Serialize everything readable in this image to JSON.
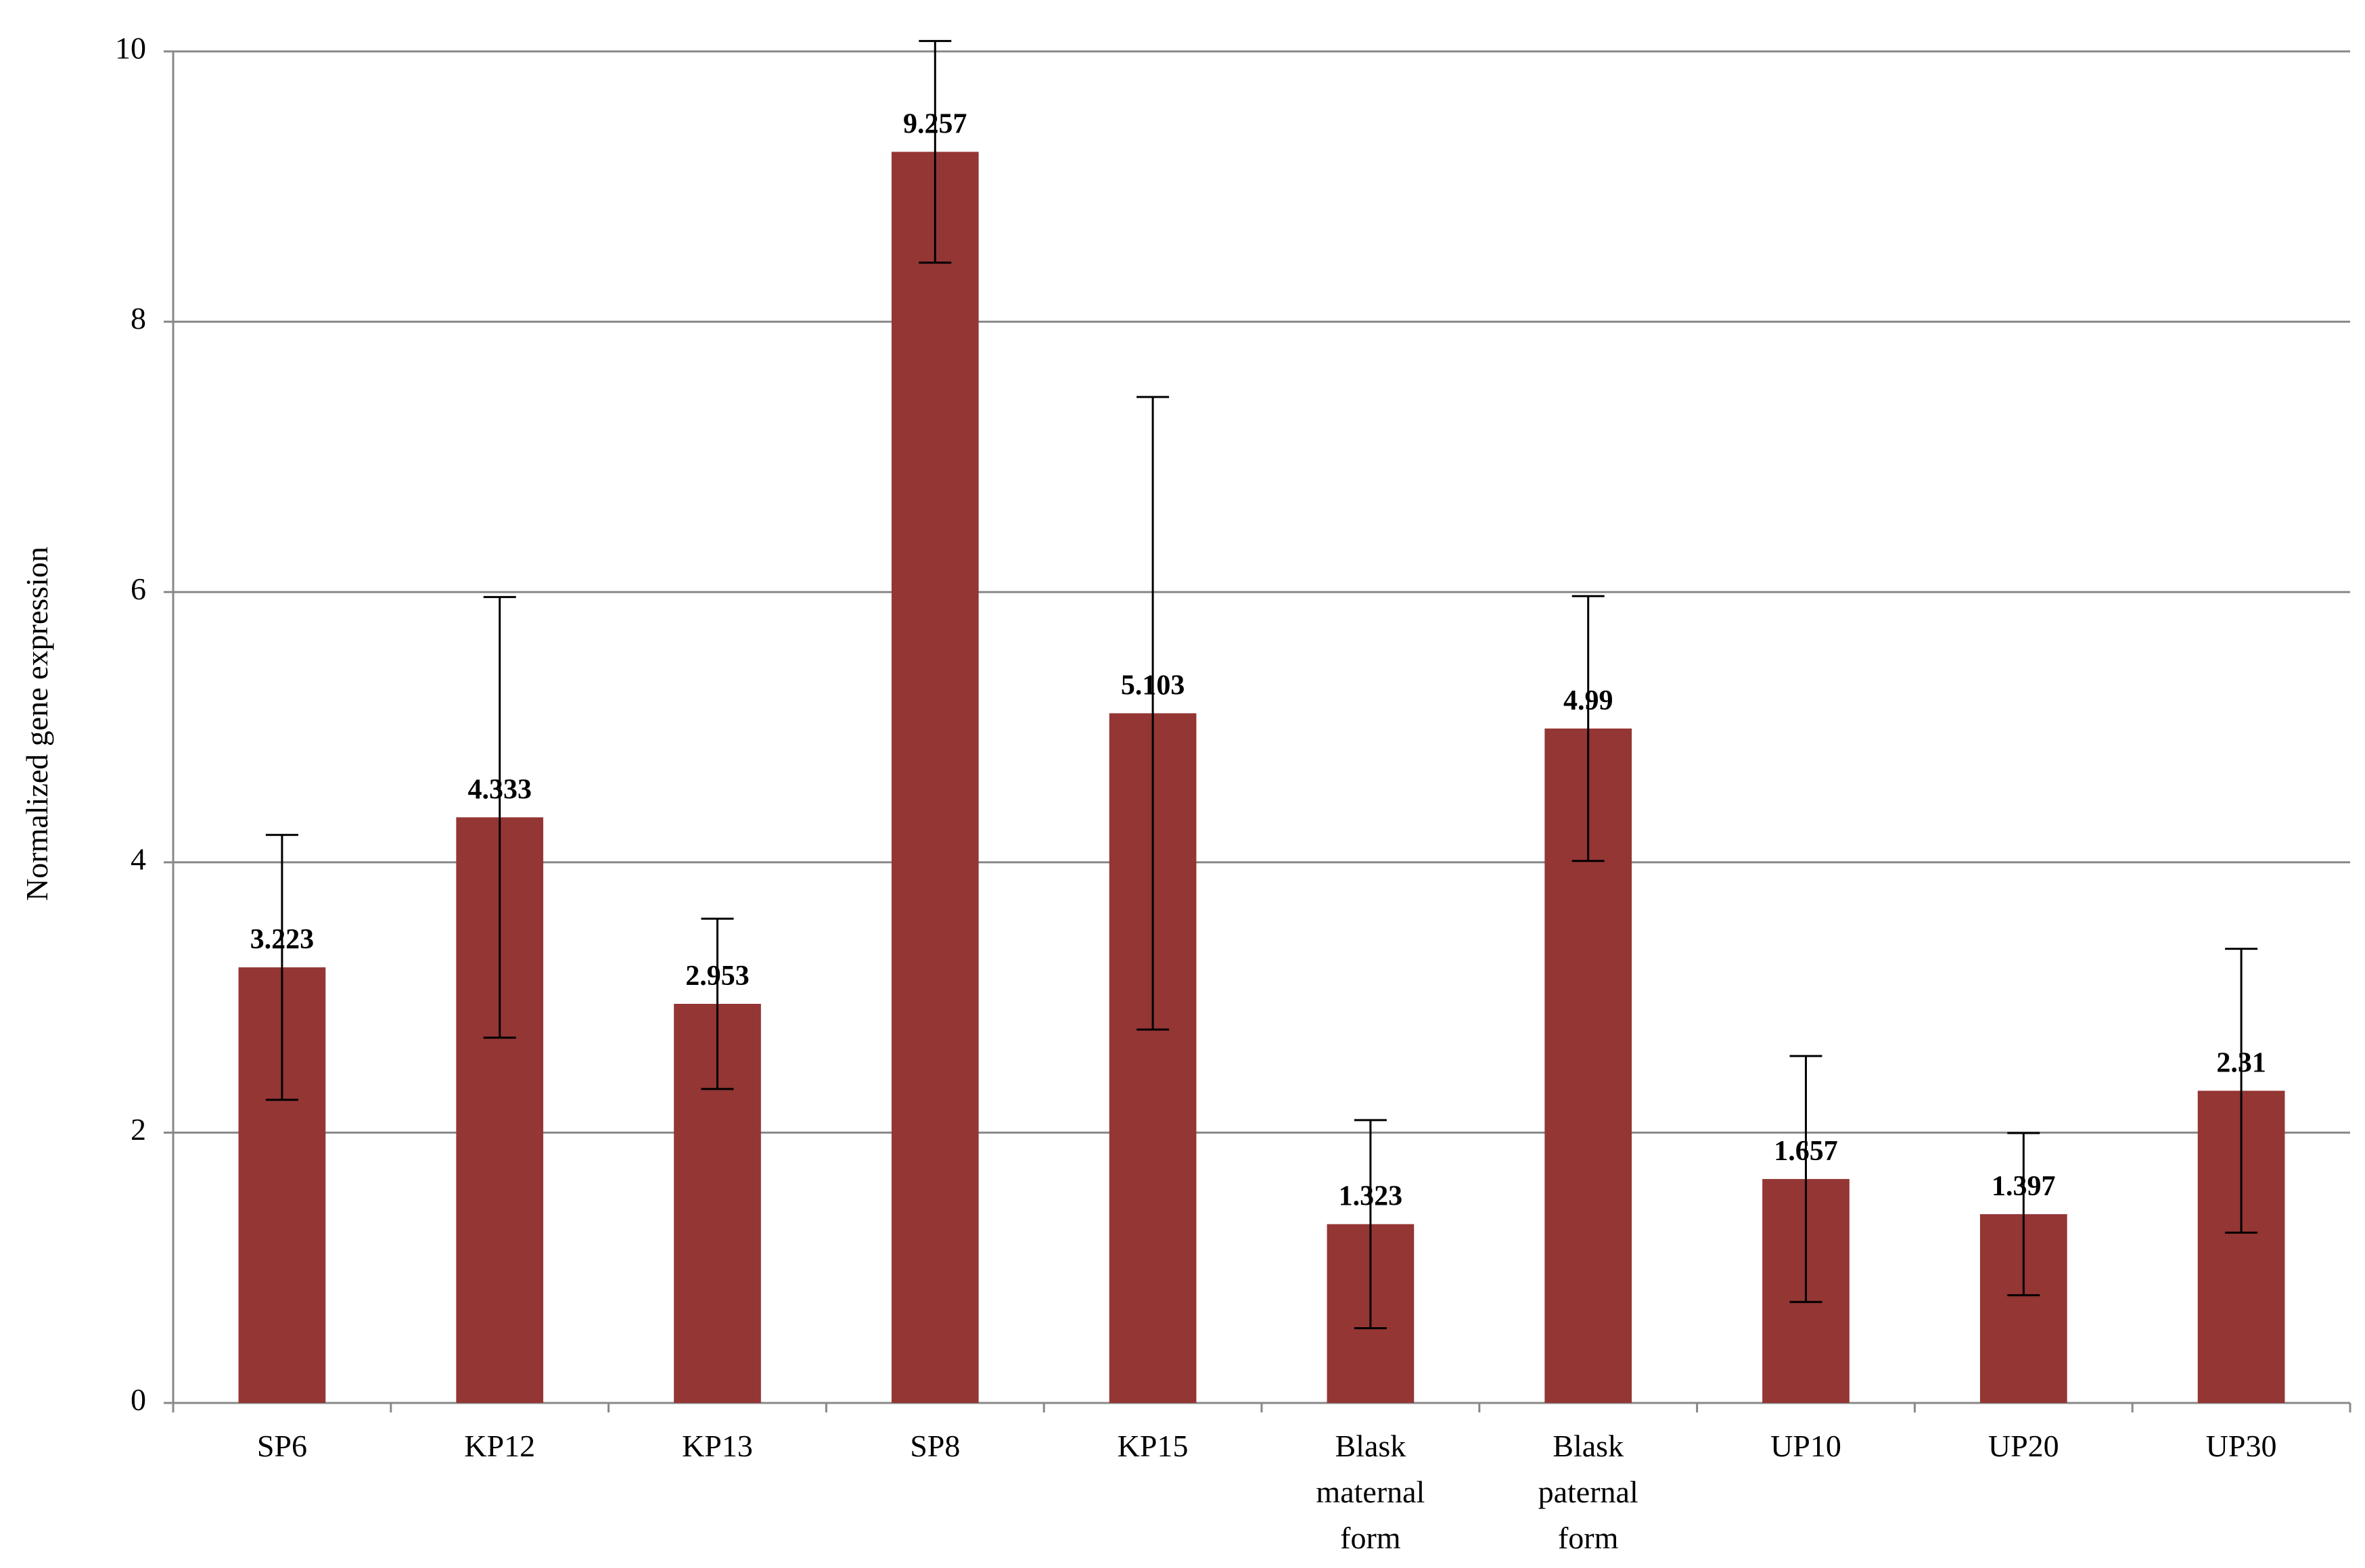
{
  "chart_data": {
    "type": "bar",
    "y_label": "Normalized  gene expression",
    "categories": [
      "SP6",
      "KP12",
      "KP13",
      "SP8",
      "KP15",
      "Blask maternal form",
      "Blask paternal form",
      "UP10",
      "UP20",
      "UP30"
    ],
    "values": [
      3.223,
      4.333,
      2.953,
      9.257,
      5.103,
      1.323,
      4.99,
      1.657,
      1.397,
      2.31
    ],
    "errors": [
      0.98,
      1.63,
      0.63,
      0.82,
      2.34,
      0.77,
      0.98,
      0.91,
      0.6,
      1.05
    ],
    "color": "#943634",
    "ylim": [
      0,
      10
    ],
    "yticks": [
      0,
      2,
      4,
      6,
      8,
      10
    ],
    "grid": true
  }
}
